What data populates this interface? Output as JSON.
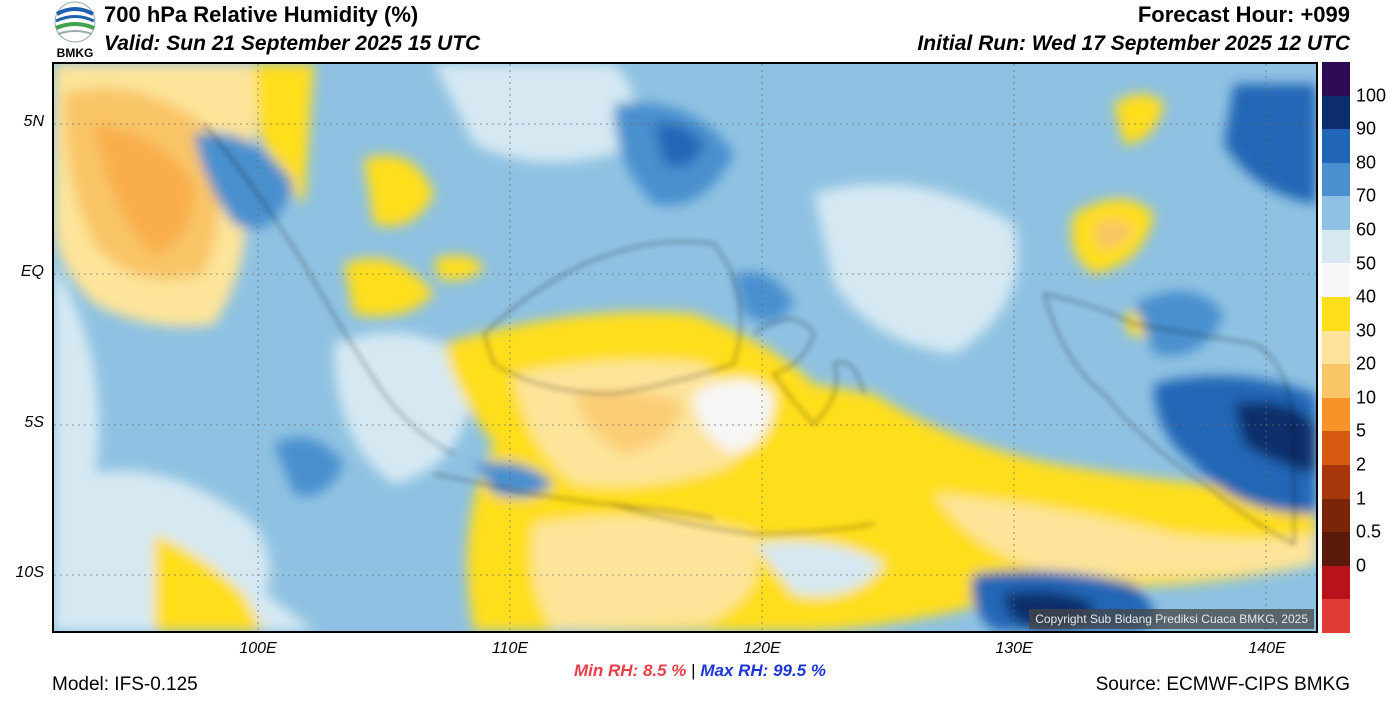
{
  "header": {
    "title": "700 hPa Relative Humidity (%)",
    "valid": "Valid: Sun 21 September 2025 15 UTC",
    "forecast_hour": "Forecast Hour: +099",
    "initial_run": "Initial Run: Wed 17 September 2025 12 UTC",
    "logo_text": "BMKG"
  },
  "map": {
    "lat_labels": [
      "5N",
      "EQ",
      "5S",
      "10S"
    ],
    "lon_labels": [
      "100E",
      "110E",
      "120E",
      "130E",
      "140E"
    ],
    "copyright": "Copyright Sub Bidang Prediksi Cuaca BMKG, 2025"
  },
  "colorbar": {
    "labels": [
      "100",
      "90",
      "80",
      "70",
      "60",
      "50",
      "40",
      "30",
      "20",
      "10",
      "5",
      "2",
      "1",
      "0.5",
      "0"
    ],
    "colors": [
      "#2e0a55",
      "#0b2d6b",
      "#2166b6",
      "#4a90cf",
      "#8fc2e2",
      "#d6e9f3",
      "#f7f7f7",
      "#ffde1a",
      "#fde49a",
      "#f9c566",
      "#f8932a",
      "#d65a10",
      "#a8360b",
      "#7a240a",
      "#5a1a0a",
      "#b8121a",
      "#e23a35"
    ]
  },
  "stats": {
    "min_label": "Min RH:",
    "min_value": "8.5 %",
    "separator": "|",
    "max_label": "Max RH:",
    "max_value": "99.5 %"
  },
  "footer": {
    "model": "Model: IFS-0.125",
    "source": "Source: ECMWF-CIPS BMKG"
  }
}
